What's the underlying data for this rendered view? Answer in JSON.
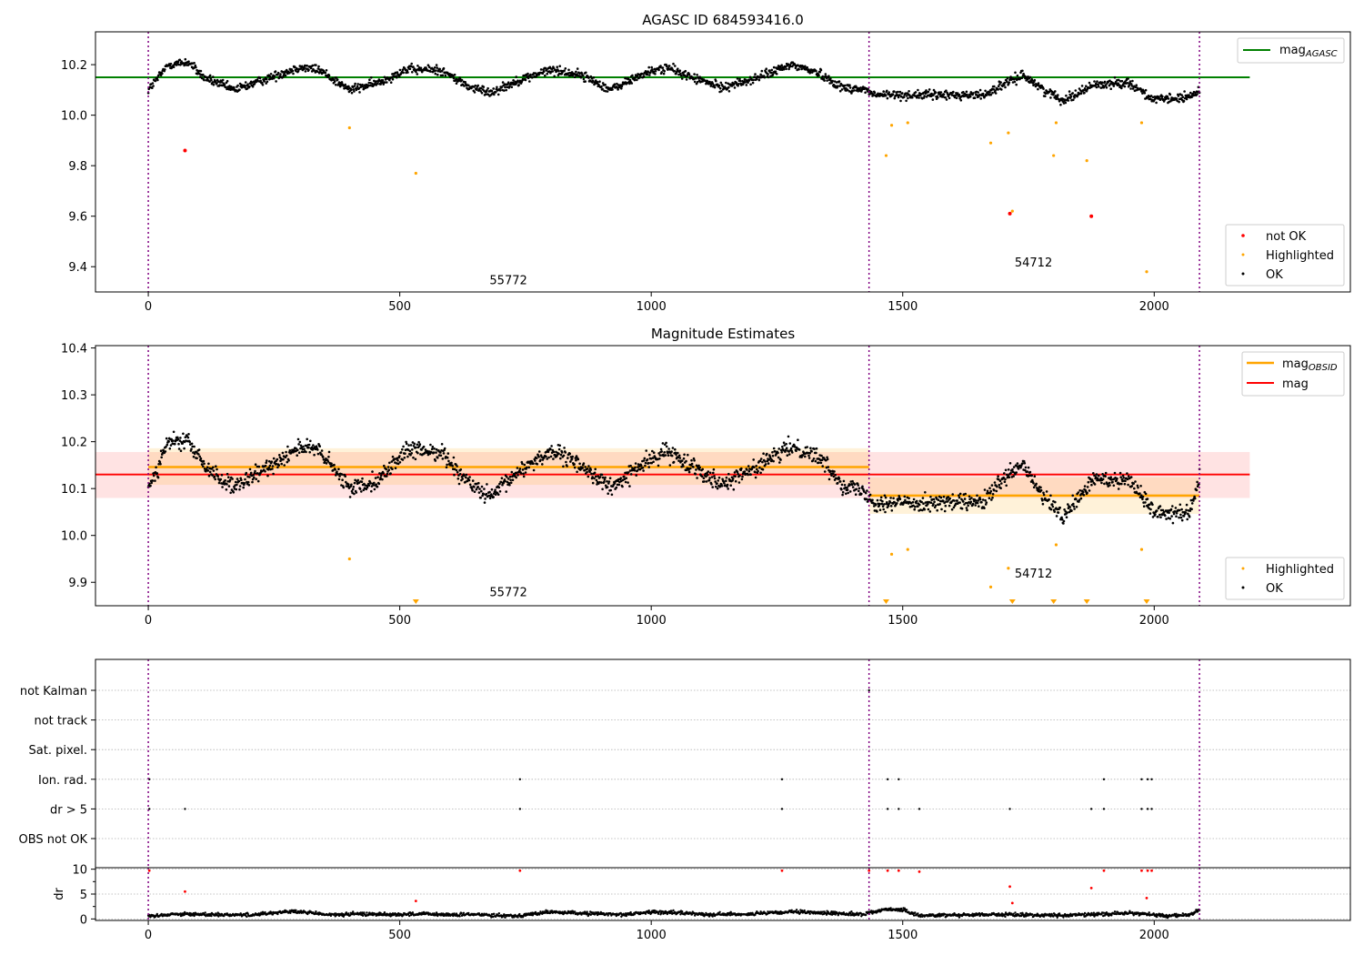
{
  "chart_data": [
    {
      "type": "scatter",
      "title": "AGASC ID 684593416.0",
      "xlim": [
        -105,
        2390
      ],
      "ylim": [
        9.3,
        10.33
      ],
      "xticks": [
        0,
        500,
        1000,
        1500,
        2000
      ],
      "yticks": [
        9.4,
        9.6,
        9.8,
        10.0,
        10.2
      ],
      "grid": false,
      "legend_upper": {
        "position": "top-right",
        "entries": [
          {
            "label": "mag",
            "sub": "AGASC",
            "color": "#008000"
          }
        ]
      },
      "legend_lower": {
        "position": "bottom-right",
        "entries": [
          {
            "label": "not OK",
            "color": "#ff0000"
          },
          {
            "label": "Highlighted",
            "color": "#ffa500"
          },
          {
            "label": "OK",
            "color": "#000000"
          }
        ]
      },
      "obsid_boundaries": [
        0,
        1433,
        2090
      ],
      "obsid_labels": [
        {
          "text": "55772",
          "x": 716,
          "y": 9.33
        },
        {
          "text": "54712",
          "x": 1760,
          "y": 9.4
        }
      ],
      "mag_agasc": {
        "value": 10.15,
        "x": [
          -105,
          2190
        ]
      },
      "ok_trend": [
        {
          "x": 0,
          "y": 10.1
        },
        {
          "x": 40,
          "y": 10.2
        },
        {
          "x": 80,
          "y": 10.21
        },
        {
          "x": 110,
          "y": 10.15
        },
        {
          "x": 170,
          "y": 10.1
        },
        {
          "x": 230,
          "y": 10.14
        },
        {
          "x": 300,
          "y": 10.19
        },
        {
          "x": 340,
          "y": 10.18
        },
        {
          "x": 400,
          "y": 10.1
        },
        {
          "x": 460,
          "y": 10.13
        },
        {
          "x": 510,
          "y": 10.18
        },
        {
          "x": 580,
          "y": 10.18
        },
        {
          "x": 640,
          "y": 10.11
        },
        {
          "x": 680,
          "y": 10.09
        },
        {
          "x": 740,
          "y": 10.14
        },
        {
          "x": 800,
          "y": 10.18
        },
        {
          "x": 860,
          "y": 10.16
        },
        {
          "x": 920,
          "y": 10.1
        },
        {
          "x": 980,
          "y": 10.16
        },
        {
          "x": 1030,
          "y": 10.19
        },
        {
          "x": 1080,
          "y": 10.15
        },
        {
          "x": 1140,
          "y": 10.11
        },
        {
          "x": 1200,
          "y": 10.14
        },
        {
          "x": 1280,
          "y": 10.2
        },
        {
          "x": 1330,
          "y": 10.17
        },
        {
          "x": 1380,
          "y": 10.11
        },
        {
          "x": 1430,
          "y": 10.1
        },
        {
          "x": 1440,
          "y": 10.08
        },
        {
          "x": 1530,
          "y": 10.08
        },
        {
          "x": 1660,
          "y": 10.08
        },
        {
          "x": 1700,
          "y": 10.12
        },
        {
          "x": 1740,
          "y": 10.16
        },
        {
          "x": 1780,
          "y": 10.1
        },
        {
          "x": 1820,
          "y": 10.06
        },
        {
          "x": 1880,
          "y": 10.12
        },
        {
          "x": 1950,
          "y": 10.13
        },
        {
          "x": 2000,
          "y": 10.06
        },
        {
          "x": 2070,
          "y": 10.07
        },
        {
          "x": 2090,
          "y": 10.1
        }
      ],
      "highlighted": [
        {
          "x": 400,
          "y": 9.95
        },
        {
          "x": 532,
          "y": 9.77
        },
        {
          "x": 1467,
          "y": 9.84
        },
        {
          "x": 1478,
          "y": 9.96
        },
        {
          "x": 1510,
          "y": 9.97
        },
        {
          "x": 1675,
          "y": 9.89
        },
        {
          "x": 1710,
          "y": 9.93
        },
        {
          "x": 1718,
          "y": 9.62
        },
        {
          "x": 1800,
          "y": 9.84
        },
        {
          "x": 1805,
          "y": 9.97
        },
        {
          "x": 1866,
          "y": 9.82
        },
        {
          "x": 1975,
          "y": 9.97
        },
        {
          "x": 1985,
          "y": 9.38
        }
      ],
      "not_ok": [
        {
          "x": 73,
          "y": 9.86
        },
        {
          "x": 1713,
          "y": 9.61
        },
        {
          "x": 1875,
          "y": 9.6
        }
      ]
    },
    {
      "type": "scatter",
      "title": "Magnitude Estimates",
      "xlim": [
        -105,
        2390
      ],
      "ylim": [
        9.85,
        10.405
      ],
      "xticks": [
        0,
        500,
        1000,
        1500,
        2000
      ],
      "yticks": [
        9.9,
        10.0,
        10.1,
        10.2,
        10.3,
        10.4
      ],
      "grid": false,
      "legend_upper": {
        "position": "top-right",
        "entries": [
          {
            "label": "mag",
            "sub": "OBSID",
            "color": "#ffa500"
          },
          {
            "label": "mag",
            "sub": "",
            "color": "#ff0000"
          }
        ]
      },
      "legend_lower": {
        "position": "bottom-right",
        "entries": [
          {
            "label": "Highlighted",
            "color": "#ffa500"
          },
          {
            "label": "OK",
            "color": "#000000"
          }
        ]
      },
      "obsid_boundaries": [
        0,
        1433,
        2090
      ],
      "obsid_labels": [
        {
          "text": "55772",
          "x": 716,
          "y": 9.87
        },
        {
          "text": "54712",
          "x": 1760,
          "y": 9.91
        }
      ],
      "mag": {
        "value": 10.13,
        "band": [
          10.08,
          10.178
        ],
        "x": [
          -105,
          2190
        ]
      },
      "mag_obsid": [
        {
          "x": [
            0,
            1433
          ],
          "value": 10.146,
          "band": [
            10.108,
            10.186
          ]
        },
        {
          "x": [
            1433,
            2090
          ],
          "value": 10.085,
          "band": [
            10.046,
            10.124
          ]
        }
      ],
      "ok_trend": [
        {
          "x": 0,
          "y": 10.1
        },
        {
          "x": 40,
          "y": 10.2
        },
        {
          "x": 80,
          "y": 10.2
        },
        {
          "x": 110,
          "y": 10.15
        },
        {
          "x": 170,
          "y": 10.1
        },
        {
          "x": 230,
          "y": 10.14
        },
        {
          "x": 300,
          "y": 10.19
        },
        {
          "x": 340,
          "y": 10.18
        },
        {
          "x": 400,
          "y": 10.1
        },
        {
          "x": 460,
          "y": 10.12
        },
        {
          "x": 510,
          "y": 10.18
        },
        {
          "x": 580,
          "y": 10.18
        },
        {
          "x": 640,
          "y": 10.11
        },
        {
          "x": 680,
          "y": 10.08
        },
        {
          "x": 740,
          "y": 10.14
        },
        {
          "x": 800,
          "y": 10.18
        },
        {
          "x": 860,
          "y": 10.15
        },
        {
          "x": 920,
          "y": 10.1
        },
        {
          "x": 980,
          "y": 10.15
        },
        {
          "x": 1030,
          "y": 10.18
        },
        {
          "x": 1080,
          "y": 10.15
        },
        {
          "x": 1140,
          "y": 10.11
        },
        {
          "x": 1200,
          "y": 10.14
        },
        {
          "x": 1280,
          "y": 10.19
        },
        {
          "x": 1330,
          "y": 10.17
        },
        {
          "x": 1380,
          "y": 10.11
        },
        {
          "x": 1430,
          "y": 10.09
        },
        {
          "x": 1440,
          "y": 10.07
        },
        {
          "x": 1530,
          "y": 10.07
        },
        {
          "x": 1660,
          "y": 10.07
        },
        {
          "x": 1700,
          "y": 10.12
        },
        {
          "x": 1740,
          "y": 10.15
        },
        {
          "x": 1780,
          "y": 10.08
        },
        {
          "x": 1820,
          "y": 10.04
        },
        {
          "x": 1880,
          "y": 10.12
        },
        {
          "x": 1950,
          "y": 10.12
        },
        {
          "x": 2000,
          "y": 10.05
        },
        {
          "x": 2070,
          "y": 10.05
        },
        {
          "x": 2090,
          "y": 10.12
        }
      ],
      "highlighted": [
        {
          "x": 400,
          "y": 9.95
        },
        {
          "x": 1478,
          "y": 9.96
        },
        {
          "x": 1510,
          "y": 9.97
        },
        {
          "x": 1675,
          "y": 9.89
        },
        {
          "x": 1710,
          "y": 9.93
        },
        {
          "x": 1805,
          "y": 9.98
        },
        {
          "x": 1975,
          "y": 9.97
        }
      ],
      "below_range_markers": [
        532,
        1467,
        1718,
        1800,
        1866,
        1985
      ]
    },
    {
      "type": "scatter",
      "title": "",
      "xlim": [
        -105,
        2390
      ],
      "xticks": [
        0,
        500,
        1000,
        1500,
        2000
      ],
      "grid": true,
      "obsid_boundaries": [
        0,
        1433,
        2090
      ],
      "flag_rows": [
        "not Kalman",
        "not track",
        "Sat. pixel.",
        "Ion. rad.",
        "dr > 5",
        "OBS not OK"
      ],
      "flags": {
        "not Kalman": [
          1433
        ],
        "not track": [],
        "Sat. pixel.": [],
        "Ion. rad.": [
          2,
          739,
          1260,
          1470,
          1492,
          1900,
          1975,
          1987,
          1995
        ],
        "dr > 5": [
          2,
          73,
          739,
          1260,
          1470,
          1492,
          1533,
          1713,
          1875,
          1900,
          1975,
          1987,
          1995
        ],
        "OBS not OK": []
      },
      "dr": {
        "ylabel": "dr",
        "ylim": [
          -0.3,
          10.3
        ],
        "yticks": [
          0,
          5,
          10
        ],
        "trend": [
          {
            "x": 0,
            "y": 0.5
          },
          {
            "x": 50,
            "y": 1.0
          },
          {
            "x": 120,
            "y": 0.9
          },
          {
            "x": 200,
            "y": 0.8
          },
          {
            "x": 280,
            "y": 1.5
          },
          {
            "x": 330,
            "y": 1.2
          },
          {
            "x": 360,
            "y": 0.8
          },
          {
            "x": 420,
            "y": 1.0
          },
          {
            "x": 500,
            "y": 0.9
          },
          {
            "x": 550,
            "y": 1.0
          },
          {
            "x": 600,
            "y": 0.8
          },
          {
            "x": 660,
            "y": 0.9
          },
          {
            "x": 730,
            "y": 0.6
          },
          {
            "x": 800,
            "y": 1.4
          },
          {
            "x": 870,
            "y": 1.1
          },
          {
            "x": 950,
            "y": 0.9
          },
          {
            "x": 1000,
            "y": 1.4
          },
          {
            "x": 1060,
            "y": 1.2
          },
          {
            "x": 1120,
            "y": 0.9
          },
          {
            "x": 1200,
            "y": 1.0
          },
          {
            "x": 1280,
            "y": 1.4
          },
          {
            "x": 1350,
            "y": 1.2
          },
          {
            "x": 1420,
            "y": 0.9
          },
          {
            "x": 1450,
            "y": 1.6
          },
          {
            "x": 1470,
            "y": 2.0
          },
          {
            "x": 1500,
            "y": 1.8
          },
          {
            "x": 1530,
            "y": 0.7
          },
          {
            "x": 1600,
            "y": 0.8
          },
          {
            "x": 1680,
            "y": 0.9
          },
          {
            "x": 1750,
            "y": 0.8
          },
          {
            "x": 1820,
            "y": 0.7
          },
          {
            "x": 1900,
            "y": 1.0
          },
          {
            "x": 1960,
            "y": 1.2
          },
          {
            "x": 2020,
            "y": 0.6
          },
          {
            "x": 2070,
            "y": 0.8
          },
          {
            "x": 2090,
            "y": 1.8
          }
        ],
        "not_ok": [
          {
            "x": 2,
            "y": 9.7
          },
          {
            "x": 73,
            "y": 5.5
          },
          {
            "x": 532,
            "y": 3.6
          },
          {
            "x": 739,
            "y": 9.7
          },
          {
            "x": 1260,
            "y": 9.7
          },
          {
            "x": 1433,
            "y": 9.7
          },
          {
            "x": 1470,
            "y": 9.7
          },
          {
            "x": 1492,
            "y": 9.7
          },
          {
            "x": 1533,
            "y": 9.5
          },
          {
            "x": 1713,
            "y": 6.5
          },
          {
            "x": 1718,
            "y": 3.2
          },
          {
            "x": 1875,
            "y": 6.2
          },
          {
            "x": 1900,
            "y": 9.7
          },
          {
            "x": 1975,
            "y": 9.7
          },
          {
            "x": 1985,
            "y": 4.2
          },
          {
            "x": 1987,
            "y": 9.7
          },
          {
            "x": 1995,
            "y": 9.7
          }
        ]
      }
    }
  ]
}
